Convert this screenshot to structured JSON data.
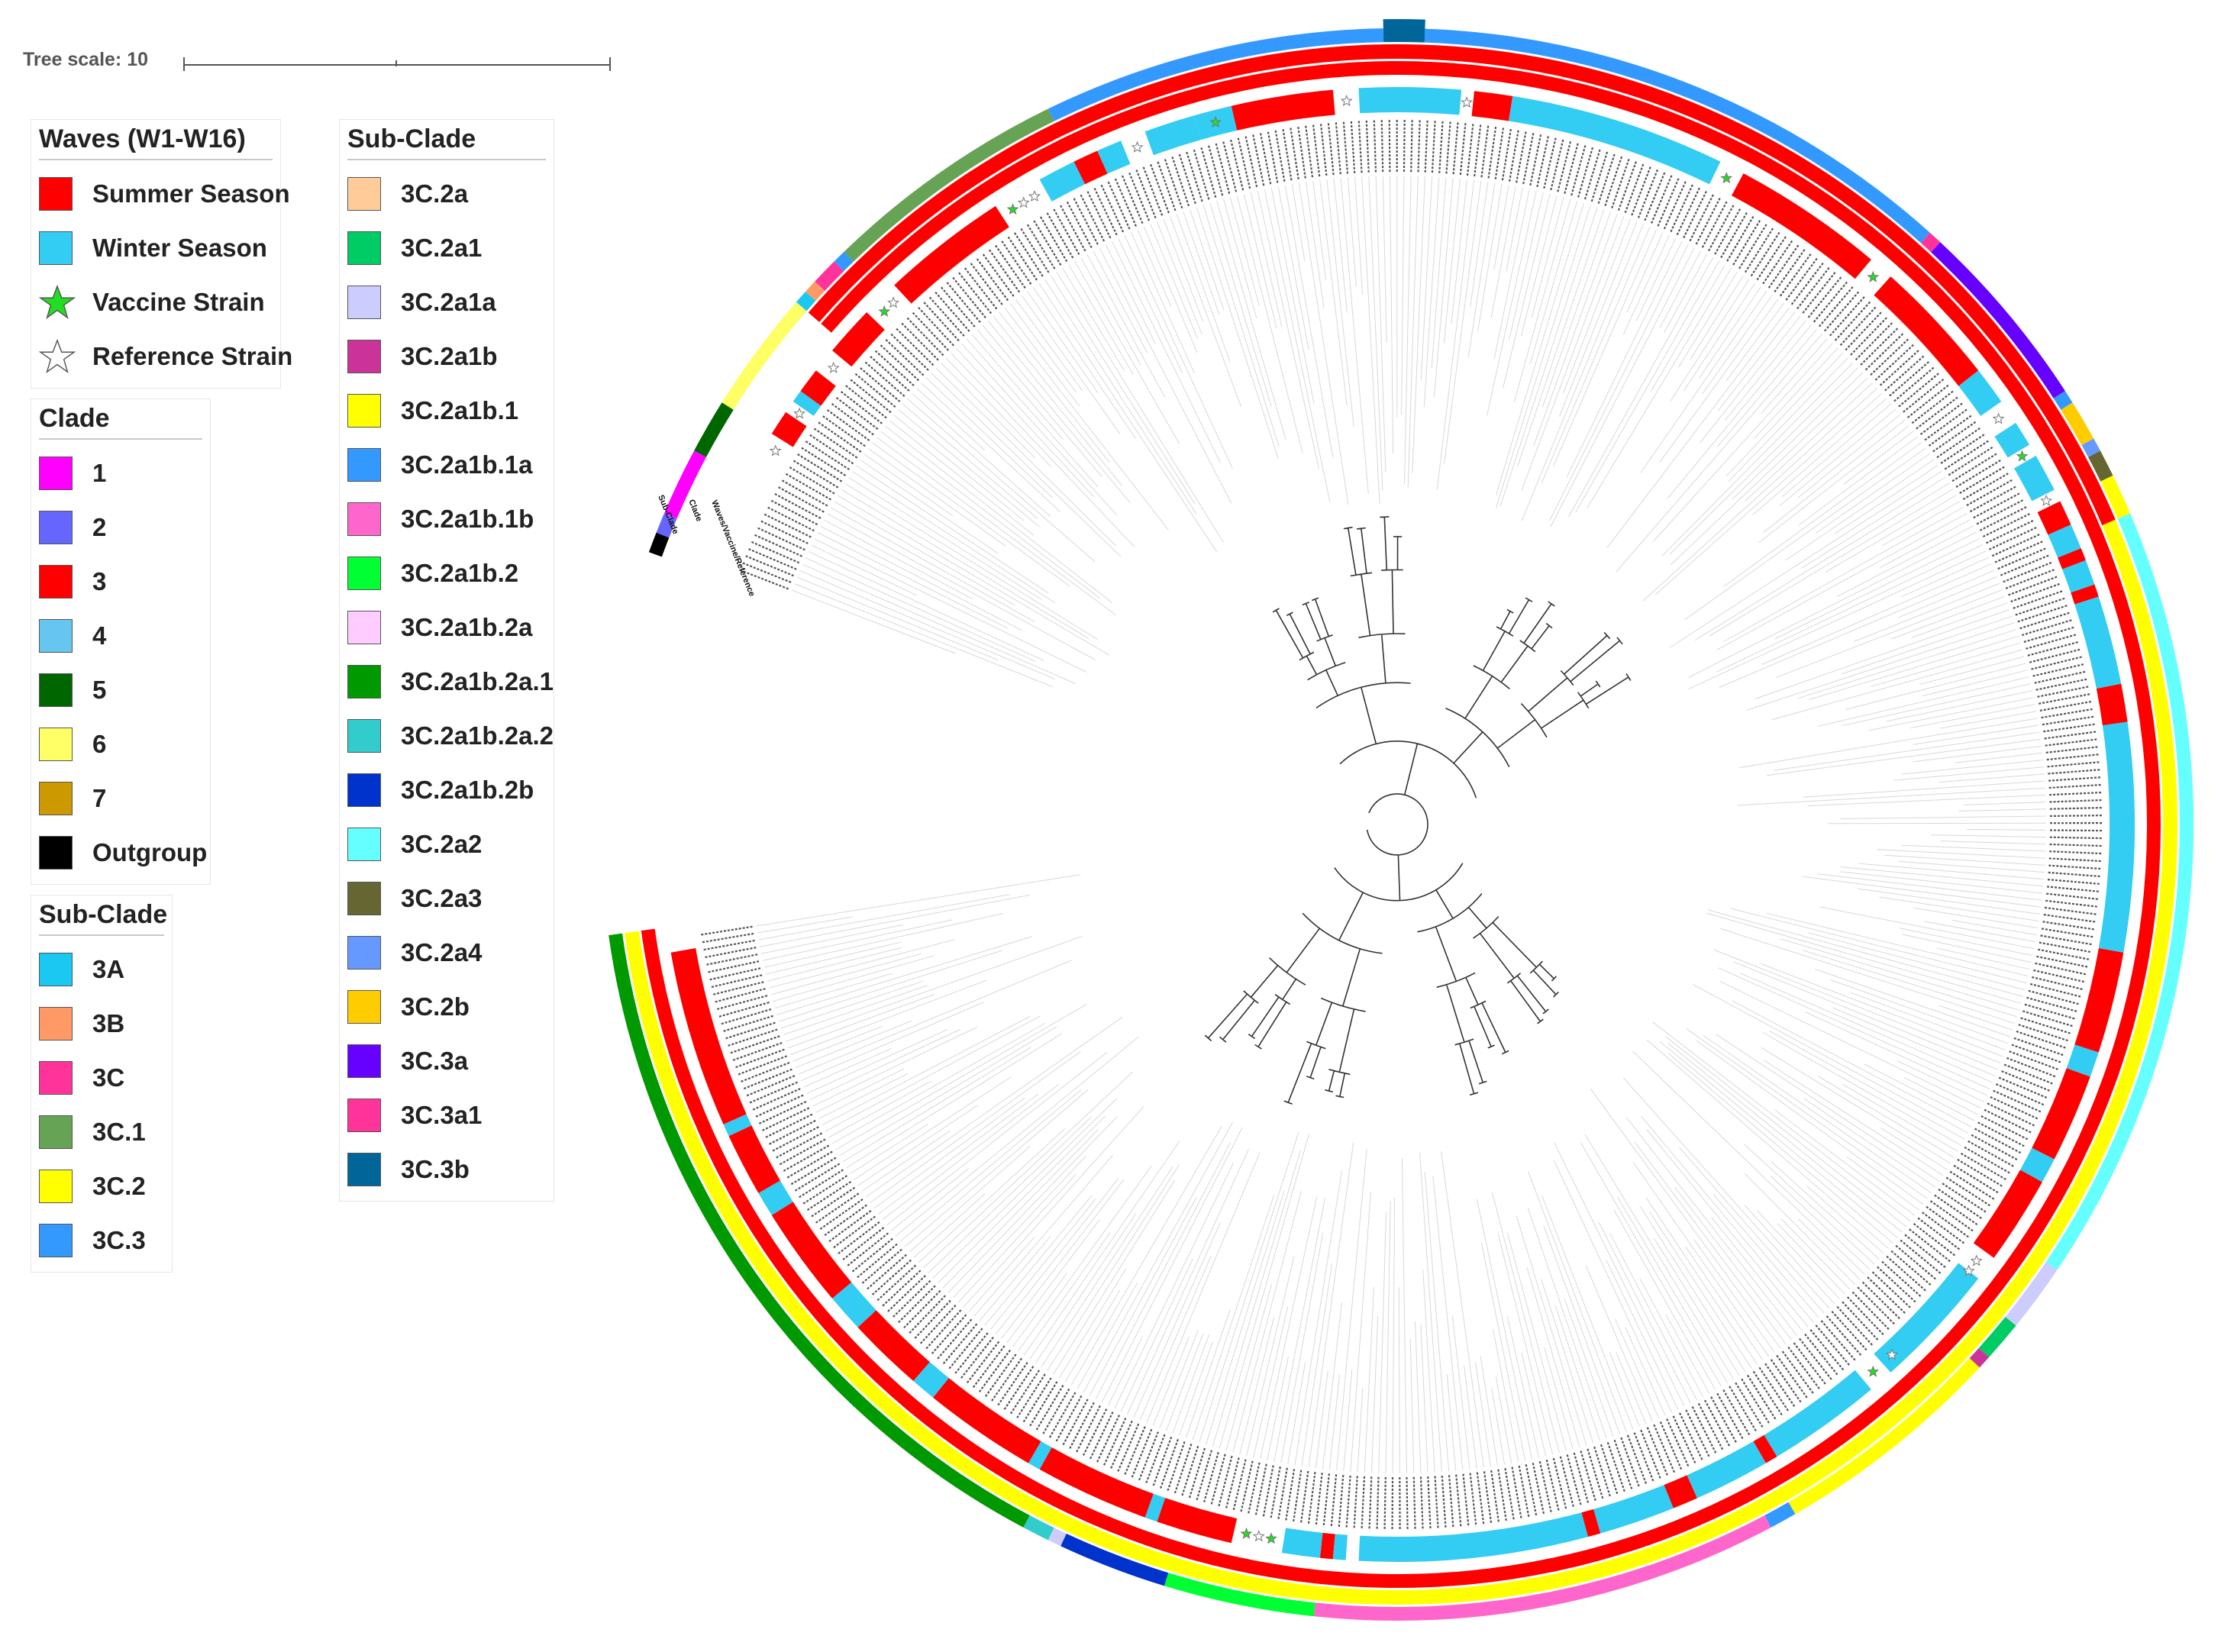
{
  "tree_scale": {
    "label": "Tree scale: 10"
  },
  "legends": {
    "waves": {
      "title": "Waves (W1-W16)",
      "items": [
        {
          "label": "Summer Season",
          "color": "#ff0000",
          "shape": "square"
        },
        {
          "label": "Winter Season",
          "color": "#33ccf2",
          "shape": "square"
        },
        {
          "label": "Vaccine Strain",
          "color": "#22dd22",
          "shape": "star"
        },
        {
          "label": "Reference Strain",
          "color": "#ffffff",
          "shape": "star"
        }
      ]
    },
    "clade": {
      "title": "Clade",
      "items": [
        {
          "label": "1",
          "color": "#ff00ff"
        },
        {
          "label": "2",
          "color": "#6666ff"
        },
        {
          "label": "3",
          "color": "#ff0000"
        },
        {
          "label": "4",
          "color": "#66c6f0"
        },
        {
          "label": "5",
          "color": "#006600"
        },
        {
          "label": "6",
          "color": "#ffff66"
        },
        {
          "label": "7",
          "color": "#cc9900"
        },
        {
          "label": "Outgroup",
          "color": "#000000"
        }
      ]
    },
    "subclade_a": {
      "title": "Sub-Clade",
      "items": [
        {
          "label": "3A",
          "color": "#1ac8f2"
        },
        {
          "label": "3B",
          "color": "#ff9966"
        },
        {
          "label": "3C",
          "color": "#ff3399"
        },
        {
          "label": "3C.1",
          "color": "#66a355"
        },
        {
          "label": "3C.2",
          "color": "#ffff00"
        },
        {
          "label": "3C.3",
          "color": "#3399ff"
        }
      ]
    },
    "subclade_b": {
      "title": "Sub-Clade",
      "items": [
        {
          "label": "3C.2a",
          "color": "#ffcc99"
        },
        {
          "label": "3C.2a1",
          "color": "#00cc66"
        },
        {
          "label": "3C.2a1a",
          "color": "#ccccff"
        },
        {
          "label": "3C.2a1b",
          "color": "#cc3399"
        },
        {
          "label": "3C.2a1b.1",
          "color": "#ffff00"
        },
        {
          "label": "3C.2a1b.1a",
          "color": "#3399ff"
        },
        {
          "label": "3C.2a1b.1b",
          "color": "#ff66cc"
        },
        {
          "label": "3C.2a1b.2",
          "color": "#00ff33"
        },
        {
          "label": "3C.2a1b.2a",
          "color": "#ffccff"
        },
        {
          "label": "3C.2a1b.2a.1",
          "color": "#009900"
        },
        {
          "label": "3C.2a1b.2a.2",
          "color": "#33cccc"
        },
        {
          "label": "3C.2a1b.2b",
          "color": "#0033cc"
        },
        {
          "label": "3C.2a2",
          "color": "#66ffff"
        },
        {
          "label": "3C.2a3",
          "color": "#666633"
        },
        {
          "label": "3C.2a4",
          "color": "#6699ff"
        },
        {
          "label": "3C.2b",
          "color": "#ffcc00"
        },
        {
          "label": "3C.3a",
          "color": "#6600ff"
        },
        {
          "label": "3C.3a1",
          "color": "#ff3399"
        },
        {
          "label": "3C.3b",
          "color": "#006699"
        }
      ]
    }
  },
  "ring_headers": {
    "subclade": "Sub-Clade",
    "clade": "Clade",
    "waves": "Waves/Vaccine/Reference"
  },
  "rings": {
    "subclade": [
      {
        "from": -172,
        "to": -118,
        "color": "#009900"
      },
      {
        "from": -118,
        "to": -116,
        "color": "#33cccc"
      },
      {
        "from": -116,
        "to": -115,
        "color": "#ccccff"
      },
      {
        "from": -115,
        "to": -107,
        "color": "#0033cc"
      },
      {
        "from": -107,
        "to": -96,
        "color": "#00ff33"
      },
      {
        "from": -96,
        "to": -62,
        "color": "#ff66cc"
      },
      {
        "from": -62,
        "to": -60,
        "color": "#3399ff"
      },
      {
        "from": -60,
        "to": -43,
        "color": "#ffff00"
      },
      {
        "from": -43,
        "to": -42,
        "color": "#cc3399"
      },
      {
        "from": -42,
        "to": -39,
        "color": "#00cc66"
      },
      {
        "from": -39,
        "to": -34,
        "color": "#ccccff"
      },
      {
        "from": -34,
        "to": 23,
        "color": "#66ffff"
      },
      {
        "from": 23,
        "to": 26,
        "color": "#ffff00"
      },
      {
        "from": 26,
        "to": 28,
        "color": "#666633"
      },
      {
        "from": 28,
        "to": 29,
        "color": "#6699ff"
      },
      {
        "from": 29,
        "to": 32,
        "color": "#ffcc00"
      },
      {
        "from": 32,
        "to": 33,
        "color": "#3399ff"
      },
      {
        "from": 33,
        "to": 47,
        "color": "#6600ff"
      },
      {
        "from": 47,
        "to": 48,
        "color": "#ff3399"
      },
      {
        "from": 48,
        "to": 88,
        "color": "#3399ff"
      },
      {
        "from": 88,
        "to": 91,
        "color": "#006699",
        "outer": true
      },
      {
        "from": 91,
        "to": 116,
        "color": "#3399ff"
      },
      {
        "from": 116,
        "to": 134,
        "color": "#66a355"
      },
      {
        "from": 134,
        "to": 135,
        "color": "#3399ff"
      },
      {
        "from": 135,
        "to": 137,
        "color": "#ff3399"
      },
      {
        "from": 137,
        "to": 138,
        "color": "#ff9966"
      },
      {
        "from": 138,
        "to": 139,
        "color": "#1ac8f2"
      },
      {
        "from": 139,
        "to": 148,
        "color": "#ffff66"
      },
      {
        "from": 148,
        "to": 152,
        "color": "#006600"
      },
      {
        "from": 152,
        "to": 157,
        "color": "#ff00ff"
      },
      {
        "from": 157,
        "to": 158.5,
        "color": "#6666ff"
      },
      {
        "from": 158.5,
        "to": 160,
        "color": "#000000"
      }
    ],
    "clade": [
      {
        "from": -172,
        "to": 23,
        "color": "#ffff00"
      },
      {
        "from": 23,
        "to": 139,
        "color": "#ff0000"
      },
      {
        "from": 139,
        "to": 160,
        "color": "#ffffff"
      }
    ],
    "clade3": [
      {
        "from": -172,
        "to": 139,
        "color": "#ff0000"
      }
    ],
    "waves": [
      {
        "from": -170,
        "to": -156,
        "color": "#ff0000"
      },
      {
        "from": -156,
        "to": -155,
        "color": "#33ccf2"
      },
      {
        "from": -155,
        "to": -150,
        "color": "#ff0000"
      },
      {
        "from": -150,
        "to": -148,
        "color": "#33ccf2"
      },
      {
        "from": -148,
        "to": -140,
        "color": "#ff0000"
      },
      {
        "from": -140,
        "to": -137,
        "color": "#33ccf2"
      },
      {
        "from": -137,
        "to": -131,
        "color": "#ff0000"
      },
      {
        "from": -131,
        "to": -129,
        "color": "#33ccf2"
      },
      {
        "from": -129,
        "to": -120,
        "color": "#ff0000"
      },
      {
        "from": -120,
        "to": -119,
        "color": "#33ccf2"
      },
      {
        "from": -119,
        "to": -110,
        "color": "#ff0000"
      },
      {
        "from": -110,
        "to": -109,
        "color": "#33ccf2"
      },
      {
        "from": -109,
        "to": -103,
        "color": "#ff0000"
      },
      {
        "from": -99,
        "to": -96,
        "color": "#33ccf2"
      },
      {
        "from": -96,
        "to": -95,
        "color": "#ff0000"
      },
      {
        "from": -95,
        "to": -94,
        "color": "#33ccf2"
      },
      {
        "from": -93,
        "to": -75,
        "color": "#33ccf2"
      },
      {
        "from": -75,
        "to": -74,
        "color": "#ff0000"
      },
      {
        "from": -74,
        "to": -68,
        "color": "#33ccf2"
      },
      {
        "from": -68,
        "to": -66,
        "color": "#ff0000"
      },
      {
        "from": -66,
        "to": -60,
        "color": "#33ccf2"
      },
      {
        "from": -60,
        "to": -59,
        "color": "#ff0000"
      },
      {
        "from": -59,
        "to": -50,
        "color": "#33ccf2"
      },
      {
        "from": -48,
        "to": -38,
        "color": "#33ccf2"
      },
      {
        "from": -36,
        "to": -29,
        "color": "#ff0000"
      },
      {
        "from": -29,
        "to": -27,
        "color": "#33ccf2"
      },
      {
        "from": -27,
        "to": -20,
        "color": "#ff0000"
      },
      {
        "from": -20,
        "to": -18,
        "color": "#33ccf2"
      },
      {
        "from": -18,
        "to": -10,
        "color": "#ff0000"
      },
      {
        "from": -10,
        "to": 8,
        "color": "#33ccf2"
      },
      {
        "from": 8,
        "to": 11,
        "color": "#ff0000"
      },
      {
        "from": 11,
        "to": 18,
        "color": "#33ccf2"
      },
      {
        "from": 18,
        "to": 19,
        "color": "#ff0000"
      },
      {
        "from": 19,
        "to": 21,
        "color": "#33ccf2"
      },
      {
        "from": 21,
        "to": 22,
        "color": "#ff0000"
      },
      {
        "from": 22,
        "to": 24,
        "color": "#33ccf2"
      },
      {
        "from": 24,
        "to": 26,
        "color": "#ff0000"
      },
      {
        "from": 27,
        "to": 30,
        "color": "#33ccf2"
      },
      {
        "from": 31,
        "to": 33,
        "color": "#33ccf2"
      },
      {
        "from": 35,
        "to": 38,
        "color": "#33ccf2"
      },
      {
        "from": 38,
        "to": 48,
        "color": "#ff0000"
      },
      {
        "from": 50,
        "to": 62,
        "color": "#ff0000"
      },
      {
        "from": 64,
        "to": 81,
        "color": "#33ccf2"
      },
      {
        "from": 81,
        "to": 84,
        "color": "#ff0000"
      },
      {
        "from": 85,
        "to": 93,
        "color": "#33ccf2"
      },
      {
        "from": 95,
        "to": 103,
        "color": "#ff0000"
      },
      {
        "from": 103,
        "to": 106,
        "color": "#33ccf2"
      },
      {
        "from": 106,
        "to": 110,
        "color": "#33ccf2"
      },
      {
        "from": 112,
        "to": 114,
        "color": "#33ccf2"
      },
      {
        "from": 114,
        "to": 116,
        "color": "#ff0000"
      },
      {
        "from": 116,
        "to": 119,
        "color": "#33ccf2"
      },
      {
        "from": 123,
        "to": 133,
        "color": "#ff0000"
      },
      {
        "from": 136,
        "to": 140,
        "color": "#ff0000"
      },
      {
        "from": 142,
        "to": 144,
        "color": "#ff0000"
      },
      {
        "from": 144,
        "to": 145,
        "color": "#33ccf2"
      },
      {
        "from": 146,
        "to": 148,
        "color": "#ff0000"
      }
    ]
  }
}
